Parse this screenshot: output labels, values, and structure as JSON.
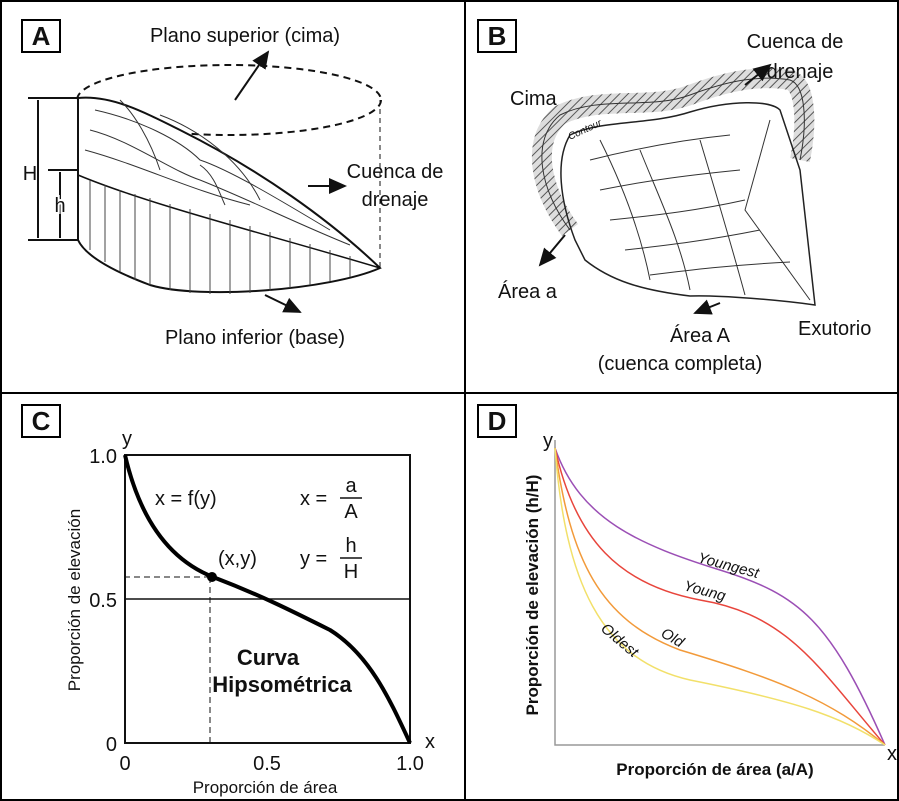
{
  "panel_a": {
    "label": "A",
    "top": "Plano superior (cima)",
    "H": "H",
    "h": "h",
    "basin": [
      "Cuenca de",
      "drenaje"
    ],
    "base": "Plano inferior (base)"
  },
  "panel_b": {
    "label": "B",
    "summit": "Cima",
    "contour": "Contour",
    "basin": [
      "Cuenca de",
      "drenaje"
    ],
    "area_a": "Área a",
    "area_A": [
      "Área A",
      "(cuenca completa)"
    ],
    "outlet": "Exutorio"
  },
  "panel_c": {
    "label": "C",
    "y": "y",
    "x": "x",
    "ylabel": "Proporción de elevación",
    "xlabel": "Proporción de área",
    "yticks": [
      "1.0",
      "0.5",
      "0"
    ],
    "xticks": [
      "0",
      "0.5",
      "1.0"
    ],
    "fx": "x = f(y)",
    "point": "(x,y)",
    "eq_x": [
      "x =",
      "a",
      "A"
    ],
    "eq_y": [
      "y =",
      "h",
      "H"
    ],
    "curve": [
      "Curva",
      "Hipsométrica"
    ]
  },
  "panel_d": {
    "label": "D",
    "y": "y",
    "x": "x",
    "ylabel": "Proporción de elevación (h/H)",
    "xlabel": "Proporción de área (a/A)",
    "curves": [
      "Youngest",
      "Young",
      "Old",
      "Oldest"
    ]
  }
}
